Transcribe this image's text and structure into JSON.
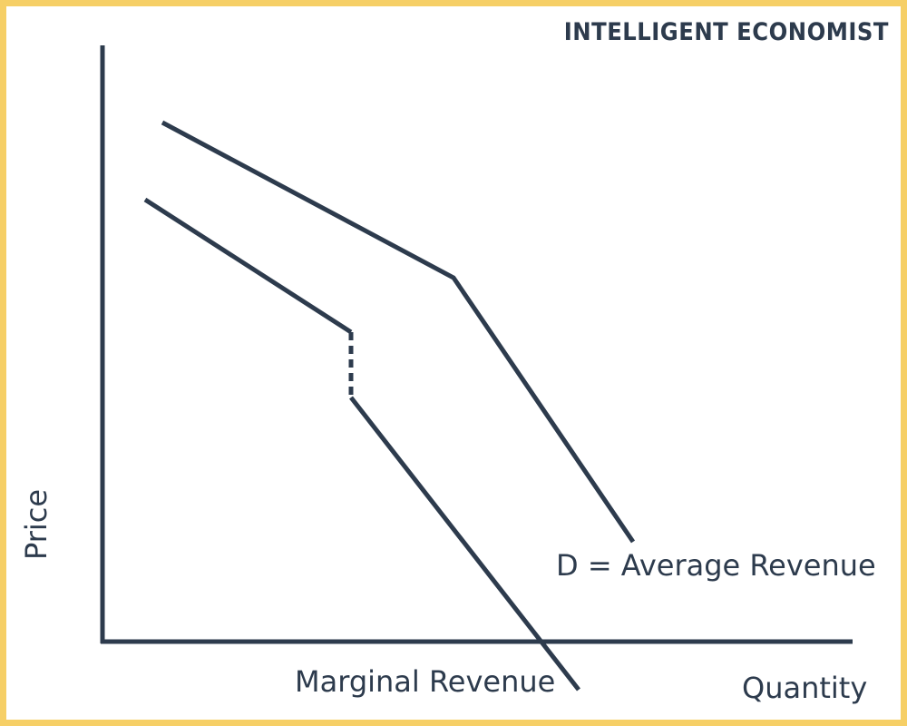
{
  "brand": "INTELLIGENT ECONOMIST",
  "axes": {
    "y_label": "Price",
    "x_label": "Quantity"
  },
  "curves": {
    "demand_label": "D = Average Revenue",
    "marginal_label": "Marginal Revenue"
  },
  "colors": {
    "ink": "#2d3b4d",
    "frame": "#f6cf66",
    "background": "#ffffff"
  }
}
